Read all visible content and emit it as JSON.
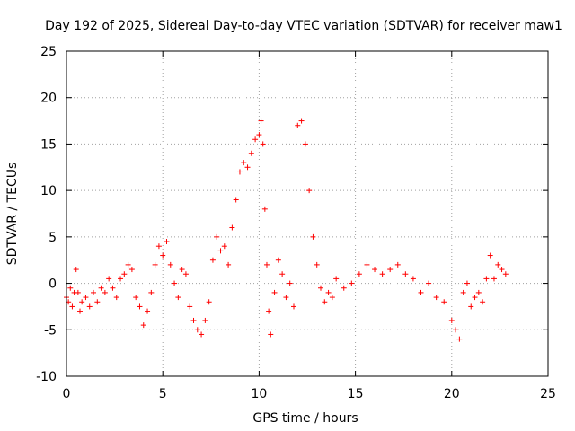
{
  "chart_data": {
    "type": "scatter",
    "title": "Day 192 of 2025, Sidereal Day-to-day VTEC variation (SDTVAR) for receiver maw1",
    "xlabel": "GPS time / hours",
    "ylabel": "SDTVAR / TECUs",
    "xlim": [
      0,
      25
    ],
    "ylim": [
      -10,
      25
    ],
    "x_ticks": [
      0,
      5,
      10,
      15,
      20,
      25
    ],
    "y_ticks": [
      -10,
      -5,
      0,
      5,
      10,
      15,
      20,
      25
    ],
    "x_tick_labels": [
      "0",
      "5",
      "10",
      "15",
      "20",
      "25"
    ],
    "y_tick_labels": [
      "-10",
      "-5",
      "0",
      "5",
      "10",
      "15",
      "20",
      "25"
    ],
    "grid": true,
    "marker": "+",
    "series": [
      {
        "name": "SDTVAR",
        "color": "#ff0000",
        "x": [
          0.0,
          0.1,
          0.2,
          0.3,
          0.4,
          0.5,
          0.6,
          0.7,
          0.8,
          1.0,
          1.2,
          1.4,
          1.6,
          1.8,
          2.0,
          2.2,
          2.4,
          2.6,
          2.8,
          3.0,
          3.2,
          3.4,
          3.6,
          3.8,
          4.0,
          4.2,
          4.4,
          4.6,
          4.8,
          5.0,
          5.2,
          5.4,
          5.6,
          5.8,
          6.0,
          6.2,
          6.4,
          6.6,
          6.8,
          7.0,
          7.2,
          7.4,
          7.6,
          7.8,
          8.0,
          8.2,
          8.4,
          8.6,
          8.8,
          9.0,
          9.2,
          9.4,
          9.6,
          9.8,
          10.0,
          10.1,
          10.2,
          10.3,
          10.4,
          10.5,
          10.6,
          10.8,
          11.0,
          11.2,
          11.4,
          11.6,
          11.8,
          12.0,
          12.2,
          12.4,
          12.6,
          12.8,
          13.0,
          13.2,
          13.4,
          13.6,
          13.8,
          14.0,
          14.4,
          14.8,
          15.2,
          15.6,
          16.0,
          16.4,
          16.8,
          17.2,
          17.6,
          18.0,
          18.4,
          18.8,
          19.2,
          19.6,
          20.0,
          20.2,
          20.4,
          20.6,
          20.8,
          21.0,
          21.2,
          21.4,
          21.6,
          21.8,
          22.0,
          22.2,
          22.4,
          22.6,
          22.8
        ],
        "y": [
          -1.5,
          -2.0,
          -0.5,
          -2.5,
          -1.0,
          1.5,
          -1.0,
          -3.0,
          -2.0,
          -1.5,
          -2.5,
          -1.0,
          -2.0,
          -0.5,
          -1.0,
          0.5,
          -0.5,
          -1.5,
          0.5,
          1.0,
          2.0,
          1.5,
          -1.5,
          -2.5,
          -4.5,
          -3.0,
          -1.0,
          2.0,
          4.0,
          3.0,
          4.5,
          2.0,
          0.0,
          -1.5,
          1.5,
          1.0,
          -2.5,
          -4.0,
          -5.0,
          -5.5,
          -4.0,
          -2.0,
          2.5,
          5.0,
          3.5,
          4.0,
          2.0,
          6.0,
          9.0,
          12.0,
          13.0,
          12.5,
          14.0,
          15.5,
          16.0,
          17.5,
          15.0,
          8.0,
          2.0,
          -3.0,
          -5.5,
          -1.0,
          2.5,
          1.0,
          -1.5,
          0.0,
          -2.5,
          17.0,
          17.5,
          15.0,
          10.0,
          5.0,
          2.0,
          -0.5,
          -2.0,
          -1.0,
          -1.5,
          0.5,
          -0.5,
          0.0,
          1.0,
          2.0,
          1.5,
          1.0,
          1.5,
          2.0,
          1.0,
          0.5,
          -1.0,
          0.0,
          -1.5,
          -2.0,
          -4.0,
          -5.0,
          -6.0,
          -1.0,
          0.0,
          -2.5,
          -1.5,
          -1.0,
          -2.0,
          0.5,
          3.0,
          0.5,
          2.0,
          1.5,
          1.0
        ]
      }
    ]
  }
}
